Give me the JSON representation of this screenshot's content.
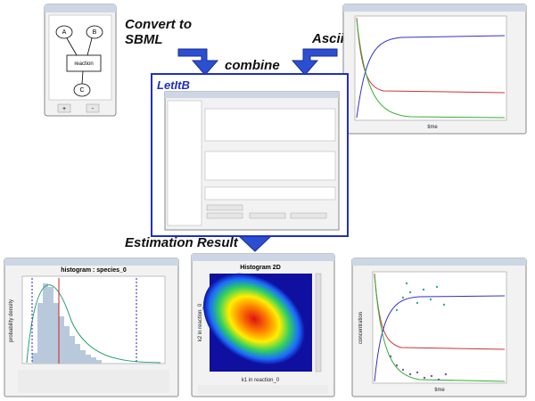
{
  "labels": {
    "convert": "Convert to",
    "sbml": "SBML",
    "ascii": "Ascii data",
    "combine": "combine",
    "app": "LetItB",
    "result": "Estimation Result"
  },
  "network": {
    "nodes": [
      "A",
      "B",
      "reaction",
      "C"
    ],
    "buttons": [
      "+",
      "-"
    ]
  },
  "histogram": {
    "title": "histogram : species_0",
    "y_label": "probability density"
  },
  "histogram2d": {
    "title": "Histogram 2D",
    "x_label": "k1 in reaction_0",
    "y_label": "k2 in reaction_0"
  },
  "fit_plot": {
    "x_label": "time",
    "y_label": "concentration"
  },
  "time_plot": {
    "x_label": "time"
  }
}
